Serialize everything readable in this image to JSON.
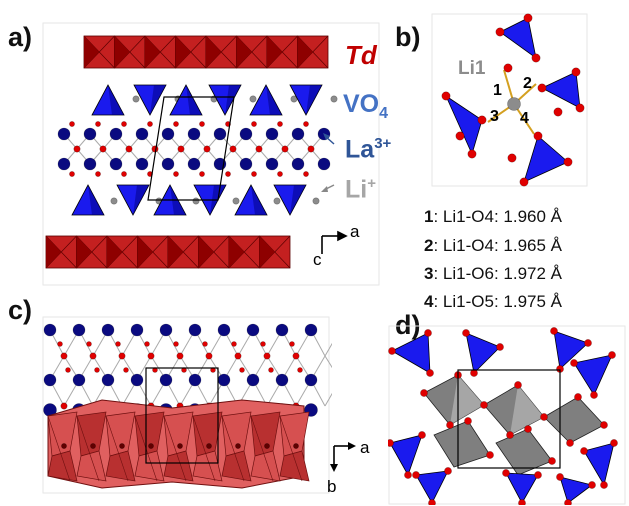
{
  "panels": {
    "a": "a)",
    "b": "b)",
    "c": "c)",
    "d": "d)"
  },
  "panel_a": {
    "labels": {
      "td": "Td",
      "vo4": "VO",
      "vo4_sub": "4",
      "la": "La",
      "la_sup": "3+",
      "li": "Li",
      "li_sup": "+"
    },
    "axes": {
      "horizontal": "a",
      "vertical": "c"
    },
    "colors": {
      "td": "#c00000",
      "vo4": "#4472c4",
      "la": "#2f5597",
      "li": "#a6a6a6"
    }
  },
  "panel_b": {
    "site_label": "Li1",
    "bond_numbers": [
      "1",
      "2",
      "3",
      "4"
    ],
    "distances": [
      {
        "num": "1",
        "text": ": Li1-O4: 1.960 Å"
      },
      {
        "num": "2",
        "text": ": Li1-O4: 1.965 Å"
      },
      {
        "num": "3",
        "text": ": Li1-O6: 1.972 Å"
      },
      {
        "num": "4",
        "text": ": Li1-O5: 1.975 Å"
      }
    ]
  },
  "panel_c": {
    "axes": {
      "horizontal": "a",
      "vertical": "b"
    }
  },
  "colors": {
    "octahedron": "#c42020",
    "octahedron_light": "#e06060",
    "tetrahedron": "#1a1aee",
    "la_atom": "#0a0a80",
    "oxygen": "#e00000",
    "lithium": "#8c8c8c",
    "gray_polyhedron": "#7f7f7f"
  }
}
